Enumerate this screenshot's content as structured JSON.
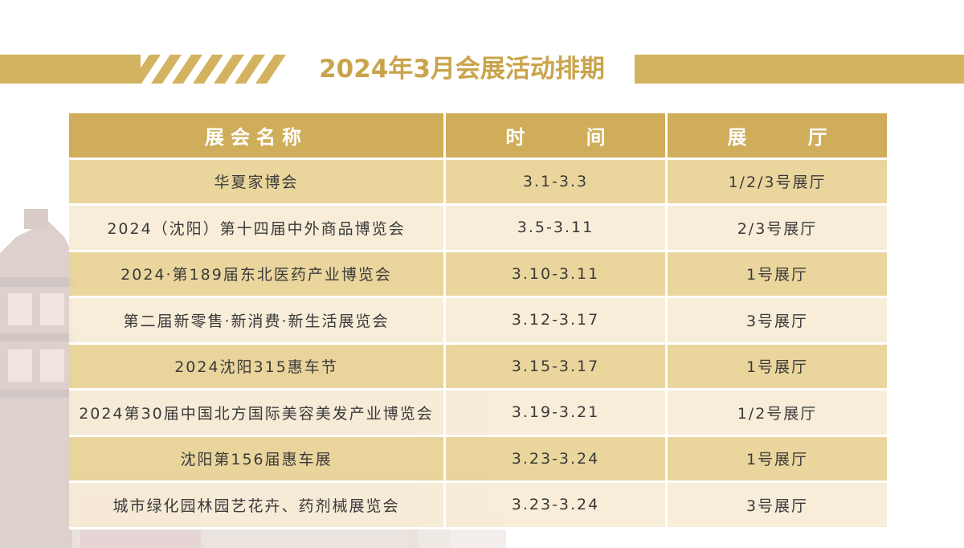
{
  "title": "2024年3月会展活动排期",
  "table": {
    "headers": [
      "展会名称",
      "时  间",
      "展  厅"
    ],
    "rows": [
      {
        "name": "华夏家博会",
        "time": "3.1-3.3",
        "hall": "1/2/3号展厅"
      },
      {
        "name": "2024（沈阳）第十四届中外商品博览会",
        "time": "3.5-3.11",
        "hall": "2/3号展厅"
      },
      {
        "name": "2024·第189届东北医药产业博览会",
        "time": "3.10-3.11",
        "hall": "1号展厅"
      },
      {
        "name": "第二届新零售·新消费·新生活展览会",
        "time": "3.12-3.17",
        "hall": "3号展厅"
      },
      {
        "name": "2024沈阳315惠车节",
        "time": "3.15-3.17",
        "hall": "1号展厅"
      },
      {
        "name": "2024第30届中国北方国际美容美发产业博览会",
        "time": "3.19-3.21",
        "hall": "1/2号展厅"
      },
      {
        "name": "沈阳第156届惠车展",
        "time": "3.23-3.24",
        "hall": "1号展厅"
      },
      {
        "name": "城市绿化园林园艺花卉、药剂械展览会",
        "time": "3.23-3.24",
        "hall": "3号展厅"
      }
    ]
  },
  "colors": {
    "accent": "#d0ad5a",
    "title": "#c9a44c",
    "row_dark": "#e8d396",
    "row_light": "#f6ecd6"
  }
}
